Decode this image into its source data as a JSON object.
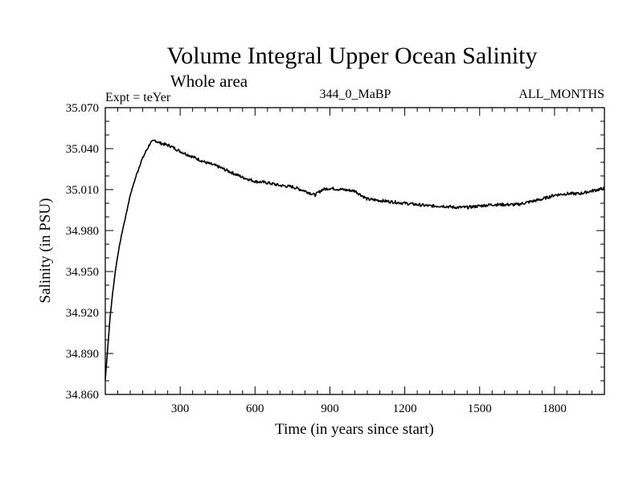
{
  "chart_data": {
    "type": "line",
    "title": "Volume Integral Upper Ocean Salinity",
    "subtitle": "Whole area",
    "annotations": {
      "left": "Expt = teYer",
      "center": "344_0_MaBP",
      "right": "ALL_MONTHS"
    },
    "xlabel": "Time (in years since start)",
    "ylabel": "Salinity (in PSU)",
    "xlim": [
      0,
      2000
    ],
    "ylim": [
      34.86,
      35.07
    ],
    "x_ticks": [
      300,
      600,
      900,
      1200,
      1500,
      1800
    ],
    "y_ticks": [
      34.86,
      34.89,
      34.92,
      34.95,
      34.98,
      35.01,
      35.04,
      35.07
    ],
    "y_tick_labels": [
      "34.860",
      "34.890",
      "34.920",
      "34.950",
      "34.980",
      "35.010",
      "35.040",
      "35.070"
    ],
    "grid": false,
    "series": [
      {
        "name": "salinity",
        "color": "#000000",
        "x": [
          0,
          10,
          20,
          30,
          40,
          50,
          60,
          70,
          80,
          100,
          120,
          140,
          160,
          180,
          200,
          220,
          240,
          260,
          300,
          350,
          400,
          450,
          500,
          550,
          600,
          650,
          700,
          750,
          800,
          840,
          870,
          900,
          950,
          1000,
          1050,
          1100,
          1150,
          1200,
          1250,
          1300,
          1350,
          1400,
          1450,
          1500,
          1550,
          1600,
          1650,
          1700,
          1750,
          1800,
          1850,
          1900,
          1950,
          2000
        ],
        "y": [
          34.871,
          34.895,
          34.918,
          34.935,
          34.95,
          34.962,
          34.972,
          34.981,
          34.989,
          35.006,
          35.018,
          35.029,
          35.037,
          35.044,
          35.046,
          35.044,
          35.043,
          35.042,
          35.038,
          35.034,
          35.03,
          35.027,
          35.023,
          35.019,
          35.016,
          35.015,
          35.013,
          35.012,
          35.009,
          35.006,
          35.01,
          35.011,
          35.01,
          35.009,
          35.003,
          35.002,
          35.001,
          35.0,
          34.999,
          34.998,
          34.998,
          34.997,
          34.997,
          34.998,
          34.999,
          34.999,
          34.999,
          35.001,
          35.003,
          35.006,
          35.007,
          35.007,
          35.009,
          35.011
        ]
      }
    ]
  }
}
